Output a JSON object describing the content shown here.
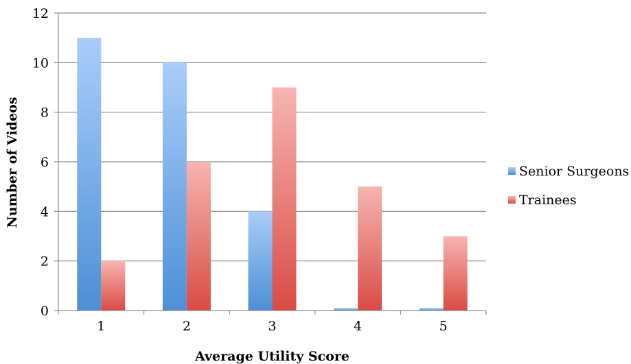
{
  "chart_data": {
    "type": "bar",
    "title": "",
    "xlabel": "Average Utility Score",
    "ylabel": "Number of Videos",
    "categories": [
      "1",
      "2",
      "3",
      "4",
      "5"
    ],
    "ylim": [
      0,
      12
    ],
    "yticks": [
      "0",
      "2",
      "4",
      "6",
      "8",
      "10",
      "12"
    ],
    "grid": true,
    "legend_position": "right",
    "series": [
      {
        "name": "Senior Surgeons",
        "values": [
          11,
          10,
          4,
          0.1,
          0.1
        ],
        "color": "#5b9bd5"
      },
      {
        "name": "Trainees",
        "values": [
          2,
          6,
          9,
          5,
          3
        ],
        "color": "#e0544f"
      }
    ]
  }
}
